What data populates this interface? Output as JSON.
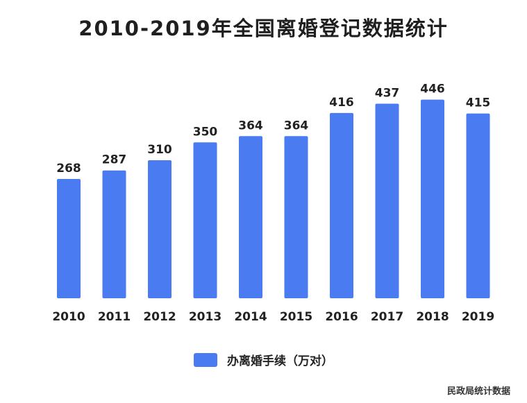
{
  "colors": {
    "bar": "#4a7bf0"
  },
  "chart_data": {
    "type": "bar",
    "title": "2010-2019年全国离婚登记数据统计",
    "categories": [
      "2010",
      "2011",
      "2012",
      "2013",
      "2014",
      "2015",
      "2016",
      "2017",
      "2018",
      "2019"
    ],
    "series": [
      {
        "name": "办离婚手续（万对）",
        "values": [
          268,
          287,
          310,
          350,
          364,
          364,
          416,
          437,
          446,
          415
        ]
      }
    ],
    "data_labels": true,
    "ylim": [
      0,
      460
    ],
    "grid": false,
    "legend": "bottom-center",
    "source": "民政局统计数据"
  }
}
